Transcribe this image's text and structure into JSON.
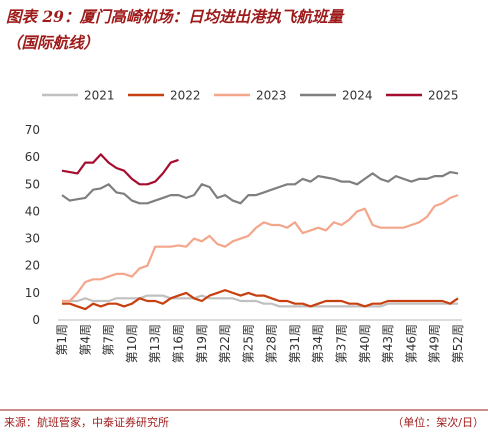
{
  "chart_data": {
    "type": "line",
    "title": "图表 29：厦门高崎机场：日均进出港执飞航班量",
    "subtitle": "（国际航线）",
    "source": "来源：航班管家，中泰证券研究所",
    "unit_note": "（单位：架次/日）",
    "categories": [
      "第1周",
      null,
      null,
      "第4周",
      null,
      null,
      "第7周",
      null,
      null,
      "第10周",
      null,
      null,
      "第13周",
      null,
      null,
      "第16周",
      null,
      null,
      "第19周",
      null,
      null,
      "第22周",
      null,
      null,
      "第25周",
      null,
      null,
      "第28周",
      null,
      null,
      "第31周",
      null,
      null,
      "第34周",
      null,
      null,
      "第37周",
      null,
      null,
      "第40周",
      null,
      null,
      "第43周",
      null,
      null,
      "第46周",
      null,
      null,
      "第49周",
      null,
      null,
      "第52周"
    ],
    "ylim": [
      0,
      70
    ],
    "yticks": [
      0,
      10,
      20,
      30,
      40,
      50,
      60,
      70
    ],
    "grid": false,
    "legend": "top",
    "series": [
      {
        "name": "2021",
        "color": "#c0c0c0",
        "values": [
          7,
          7,
          7,
          8,
          7,
          7,
          7,
          8,
          8,
          8,
          8,
          9,
          9,
          9,
          8,
          8,
          8,
          8,
          9,
          8,
          8,
          8,
          8,
          7,
          7,
          7,
          6,
          6,
          5,
          5,
          5,
          5,
          5,
          5,
          5,
          5,
          5,
          5,
          5,
          5,
          5,
          5,
          6,
          6,
          6,
          6,
          6,
          6,
          6,
          6,
          6,
          6
        ]
      },
      {
        "name": "2022",
        "color": "#c8400f",
        "values": [
          6,
          6,
          5,
          4,
          6,
          5,
          6,
          6,
          5,
          6,
          8,
          7,
          7,
          6,
          8,
          9,
          10,
          8,
          7,
          9,
          10,
          11,
          10,
          9,
          10,
          9,
          9,
          8,
          7,
          7,
          6,
          6,
          5,
          6,
          7,
          7,
          7,
          6,
          6,
          5,
          6,
          6,
          7,
          7,
          7,
          7,
          7,
          7,
          7,
          7,
          6,
          8
        ]
      },
      {
        "name": "2023",
        "color": "#f4a68c",
        "values": [
          7,
          7,
          10,
          14,
          15,
          15,
          16,
          17,
          17,
          16,
          19,
          20,
          27,
          27,
          27,
          27.5,
          27,
          30,
          29,
          31,
          28,
          27,
          29,
          30,
          31,
          34,
          36,
          35,
          35,
          34,
          36,
          32,
          33,
          34,
          33,
          36,
          35,
          37,
          40,
          41,
          35,
          34,
          34,
          34,
          34,
          35,
          36,
          38,
          42,
          43,
          45,
          46
        ]
      },
      {
        "name": "2024",
        "color": "#7f7f7f",
        "values": [
          46,
          44,
          44.5,
          45,
          48,
          48.5,
          50,
          47,
          46.5,
          44,
          43,
          43,
          44,
          45,
          46,
          46,
          45,
          46,
          50,
          49,
          45,
          46,
          44,
          43,
          46,
          46,
          47,
          48,
          49,
          50,
          50,
          52,
          51,
          53,
          52.5,
          52,
          51,
          51,
          50,
          52,
          54,
          52,
          51,
          53,
          52,
          51,
          52,
          52,
          53,
          53,
          54.5,
          54
        ]
      },
      {
        "name": "2025",
        "color": "#a50d2e",
        "values": [
          55,
          54.5,
          54,
          58,
          58,
          61,
          58,
          56,
          55,
          52,
          50,
          50,
          51,
          54,
          58,
          59,
          null,
          null,
          null,
          null,
          null,
          null,
          null,
          null,
          null,
          null,
          null,
          null,
          null,
          null,
          null,
          null,
          null,
          null,
          null,
          null,
          null,
          null,
          null,
          null,
          null,
          null,
          null,
          null,
          null,
          null,
          null,
          null,
          null,
          null,
          null,
          null
        ]
      }
    ]
  }
}
